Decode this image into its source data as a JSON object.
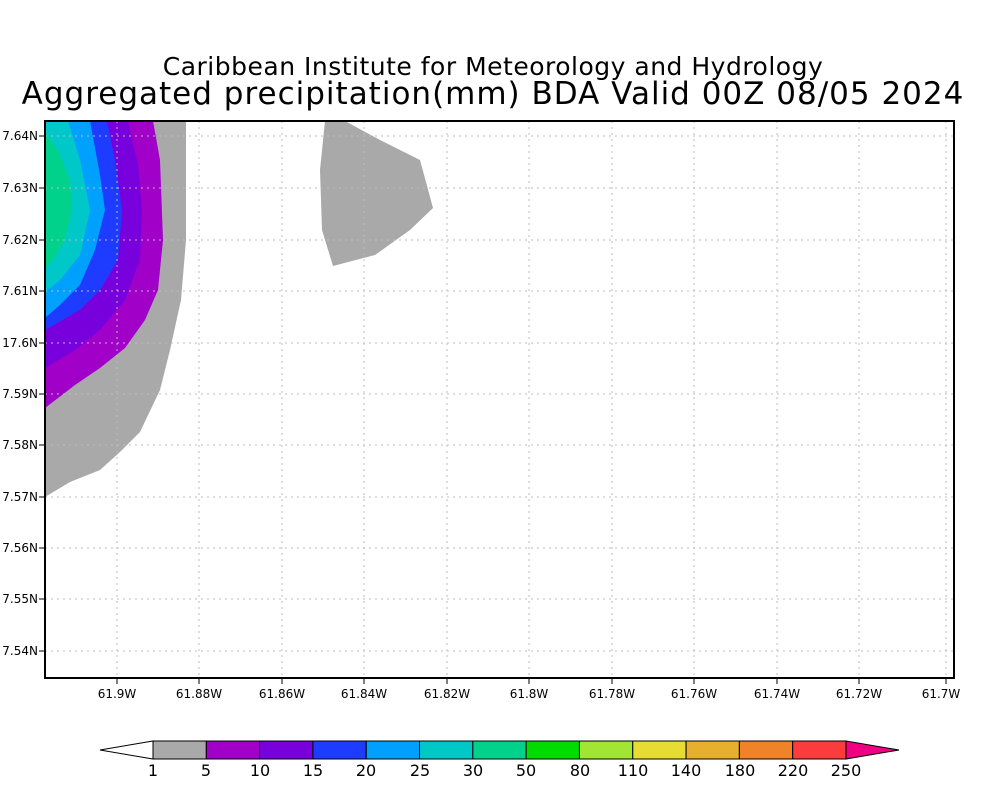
{
  "header": {
    "line1": "Caribbean Institute for Meteorology and Hydrology",
    "line2": "Aggregated precipitation(mm) BDA Valid 00Z 08/05 2024"
  },
  "axes": {
    "lat_ticks": [
      "7.64N",
      "7.63N",
      "7.62N",
      "7.61N",
      "17.6N",
      "7.59N",
      "7.58N",
      "7.57N",
      "7.56N",
      "7.55N",
      "7.54N"
    ],
    "lon_ticks": [
      "61.9W",
      "61.88W",
      "61.86W",
      "61.84W",
      "61.82W",
      "61.8W",
      "61.78W",
      "61.76W",
      "61.74W",
      "61.72W",
      "61.7W"
    ],
    "grid": true
  },
  "colorbar": {
    "levels": [
      "1",
      "5",
      "10",
      "15",
      "20",
      "25",
      "30",
      "50",
      "80",
      "110",
      "140",
      "180",
      "220",
      "250"
    ],
    "colors": [
      "#a9a9a9",
      "#a000c8",
      "#7800dc",
      "#1e3cff",
      "#00a0ff",
      "#00c8c8",
      "#00d28c",
      "#00dc00",
      "#a0e632",
      "#e6dc32",
      "#e6af2d",
      "#f08228",
      "#fa3c3c",
      "#f00082"
    ],
    "below_color": "#ffffff"
  }
}
